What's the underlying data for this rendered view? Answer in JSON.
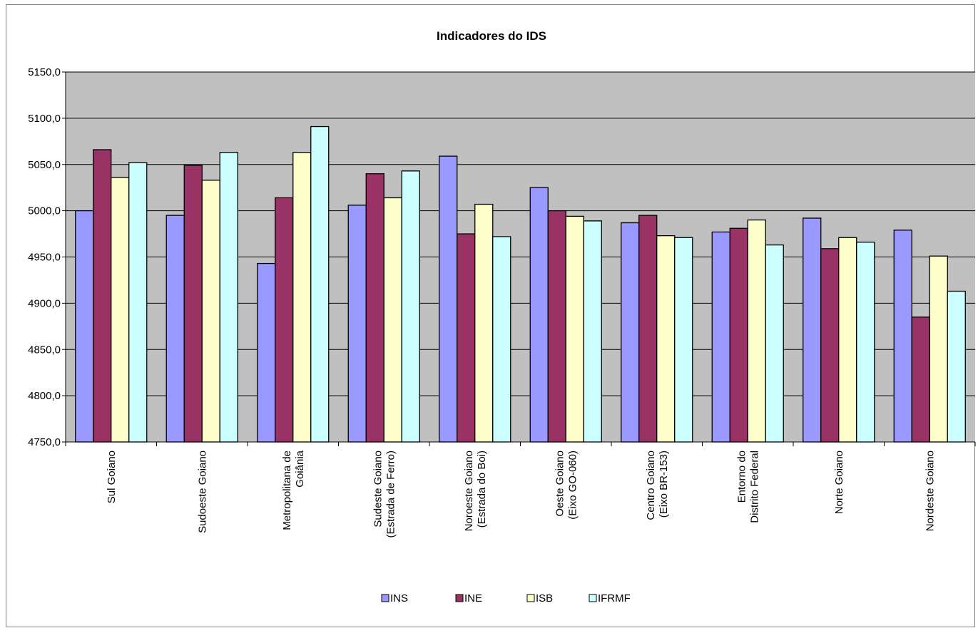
{
  "chart_data": {
    "type": "bar",
    "title": "Indicadores do IDS",
    "xlabel": "",
    "ylabel": "",
    "ylim": [
      4750,
      5150
    ],
    "ytick_step": 50,
    "ytick_labels": [
      "4750,0",
      "4800,0",
      "4850,0",
      "4900,0",
      "4950,0",
      "5000,0",
      "5050,0",
      "5100,0",
      "5150,0"
    ],
    "grid": true,
    "legend_position": "bottom",
    "categories": [
      [
        "Sul Goiano"
      ],
      [
        "Sudoeste Goiano"
      ],
      [
        "Metropolitana de",
        "Goiânia"
      ],
      [
        "Sudeste Goiano",
        "(Estrada de Ferro)"
      ],
      [
        "Noroeste Goiano",
        "(Estrada do Boi)"
      ],
      [
        "Oeste Goiano",
        "(Eixo GO-060)"
      ],
      [
        "Centro Goiano",
        "(Eixo BR-153)"
      ],
      [
        "Entorno do",
        "Distrito Federal"
      ],
      [
        "Norte Goiano"
      ],
      [
        "Nordeste Goiano"
      ]
    ],
    "series": [
      {
        "name": "INS",
        "color": "#9999ff",
        "values": [
          5000,
          4995,
          4943,
          5006,
          5059,
          5025,
          4987,
          4977,
          4992,
          4979
        ]
      },
      {
        "name": "INE",
        "color": "#993366",
        "values": [
          5066,
          5049,
          5014,
          5040,
          4975,
          5000,
          4995,
          4981,
          4959,
          4885
        ]
      },
      {
        "name": "ISB",
        "color": "#ffffcc",
        "values": [
          5036,
          5033,
          5063,
          5014,
          5007,
          4994,
          4973,
          4990,
          4971,
          4951
        ]
      },
      {
        "name": "IFRMF",
        "color": "#ccffff",
        "values": [
          5052,
          5063,
          5091,
          5043,
          4972,
          4989,
          4971,
          4963,
          4966,
          4913
        ]
      }
    ],
    "plot_background": "#c0c0c0"
  }
}
